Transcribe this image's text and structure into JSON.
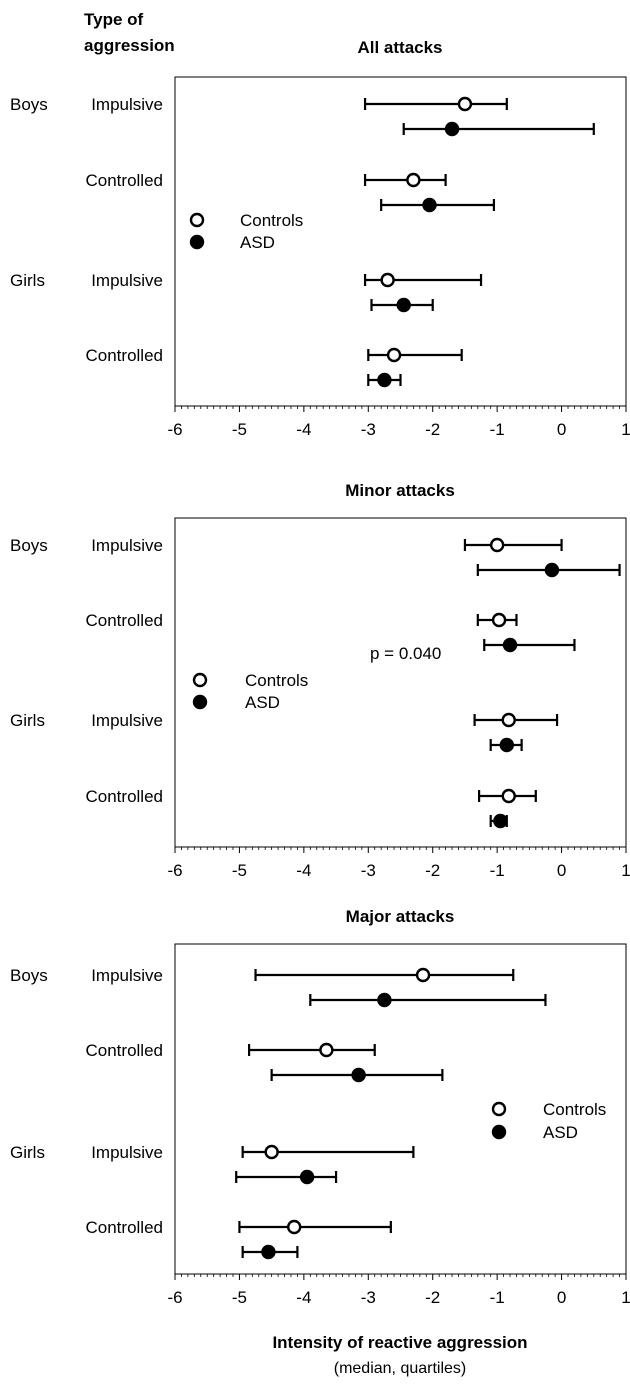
{
  "header": {
    "line1": "Type of",
    "line2": "aggression"
  },
  "groups": [
    "Boys",
    "Girls"
  ],
  "row_labels": [
    "Impulsive",
    "Controlled",
    "Impulsive",
    "Controlled"
  ],
  "legend": [
    "Controls",
    "ASD"
  ],
  "footer": {
    "xlabel": "Intensity of reactive aggression",
    "sublabel": "(median, quartiles)"
  },
  "chart_data": [
    {
      "type": "scatter",
      "title": "All attacks",
      "xlim": [
        -6,
        1
      ],
      "xticks": [
        -6,
        -5,
        -4,
        -3,
        -2,
        -1,
        0,
        1
      ],
      "legend_position": "middle-left",
      "categories": [
        "Boys Impulsive",
        "Boys Controlled",
        "Girls Impulsive",
        "Girls Controlled"
      ],
      "series": [
        {
          "name": "Controls",
          "marker": "open-circle",
          "median": [
            -1.5,
            -2.3,
            -2.7,
            -2.6
          ],
          "q1": [
            -3.05,
            -3.05,
            -3.05,
            -3.0
          ],
          "q3": [
            -0.85,
            -1.8,
            -1.25,
            -1.55
          ]
        },
        {
          "name": "ASD",
          "marker": "filled-circle",
          "median": [
            -1.7,
            -2.05,
            -2.45,
            -2.75
          ],
          "q1": [
            -2.45,
            -2.8,
            -2.95,
            -3.0
          ],
          "q3": [
            0.5,
            -1.05,
            -2.0,
            -2.5
          ]
        }
      ],
      "annotations": []
    },
    {
      "type": "scatter",
      "title": "Minor attacks",
      "xlim": [
        -6,
        1
      ],
      "xticks": [
        -6,
        -5,
        -4,
        -3,
        -2,
        -1,
        0,
        1
      ],
      "legend_position": "middle-left",
      "categories": [
        "Boys Impulsive",
        "Boys Controlled",
        "Girls Impulsive",
        "Girls Controlled"
      ],
      "series": [
        {
          "name": "Controls",
          "marker": "open-circle",
          "median": [
            -1.0,
            -0.97,
            -0.82,
            -0.82
          ],
          "q1": [
            -1.5,
            -1.3,
            -1.35,
            -1.28
          ],
          "q3": [
            0.0,
            -0.7,
            -0.07,
            -0.4
          ]
        },
        {
          "name": "ASD",
          "marker": "filled-circle",
          "median": [
            -0.15,
            -0.8,
            -0.85,
            -0.95
          ],
          "q1": [
            -1.3,
            -1.2,
            -1.1,
            -1.1
          ],
          "q3": [
            0.9,
            0.2,
            -0.62,
            -0.85
          ]
        }
      ],
      "annotations": [
        "p = 0.040"
      ]
    },
    {
      "type": "scatter",
      "title": "Major attacks",
      "xlim": [
        -6,
        1
      ],
      "xticks": [
        -6,
        -5,
        -4,
        -3,
        -2,
        -1,
        0,
        1
      ],
      "legend_position": "middle-right",
      "categories": [
        "Boys Impulsive",
        "Boys Controlled",
        "Girls Impulsive",
        "Girls Controlled"
      ],
      "series": [
        {
          "name": "Controls",
          "marker": "open-circle",
          "median": [
            -2.15,
            -3.65,
            -4.5,
            -4.15
          ],
          "q1": [
            -4.75,
            -4.85,
            -4.95,
            -5.0
          ],
          "q3": [
            -0.75,
            -2.9,
            -2.3,
            -2.65
          ]
        },
        {
          "name": "ASD",
          "marker": "filled-circle",
          "median": [
            -2.75,
            -3.15,
            -3.95,
            -4.55
          ],
          "q1": [
            -3.9,
            -4.5,
            -5.05,
            -4.95
          ],
          "q3": [
            -0.25,
            -1.85,
            -3.5,
            -4.1
          ]
        }
      ],
      "annotations": []
    }
  ]
}
